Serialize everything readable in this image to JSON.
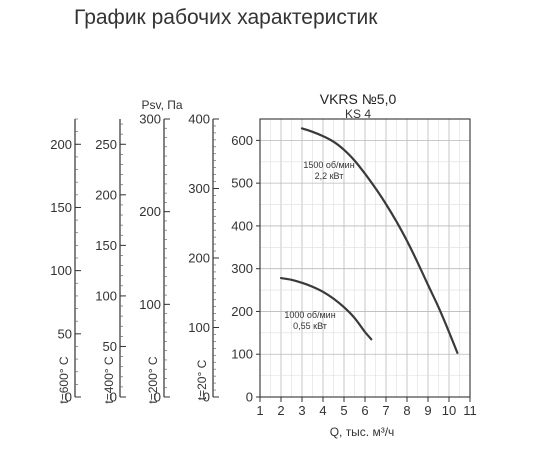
{
  "page_title": "График рабочих характеристик",
  "chart_data": {
    "type": "line",
    "title": "VKRS №5,0",
    "subtitle": "KS 4",
    "xlabel": "Q, тыс. м³/ч",
    "ylabel": "Psv, Па",
    "xlim": [
      1,
      11
    ],
    "ylim": [
      0,
      650
    ],
    "x_ticks": [
      "1",
      "2",
      "3",
      "4",
      "5",
      "6",
      "7",
      "8",
      "9",
      "10",
      "11"
    ],
    "y_ticks": [
      0,
      100,
      200,
      300,
      400,
      500,
      600
    ],
    "grid": true,
    "series": [
      {
        "name": "1500 об/мин",
        "label_line1": "1500 об/мин",
        "label_line2": "2,2 кВт",
        "x": [
          3.0,
          3.5,
          4.0,
          4.5,
          5.0,
          5.5,
          6.0,
          6.5,
          7.0,
          7.5,
          8.0,
          8.5,
          9.0,
          9.5,
          10.0,
          10.4
        ],
        "y": [
          628,
          620,
          610,
          597,
          578,
          553,
          522,
          488,
          451,
          410,
          365,
          315,
          262,
          210,
          152,
          103
        ]
      },
      {
        "name": "1000 об/мин",
        "label_line1": "1000 об/мин",
        "label_line2": "0,55 кВт",
        "x": [
          2.0,
          2.5,
          3.0,
          3.5,
          4.0,
          4.5,
          5.0,
          5.5,
          6.0,
          6.3
        ],
        "y": [
          278,
          274,
          267,
          258,
          246,
          230,
          210,
          185,
          152,
          135
        ]
      }
    ],
    "temperature_axes": [
      {
        "label": "t=20° C",
        "ticks": [
          "0",
          "100",
          "200",
          "300",
          "400"
        ]
      },
      {
        "label": "t=200° C",
        "ticks": [
          "0",
          "100",
          "200",
          "300"
        ]
      },
      {
        "label": "t=400° C",
        "ticks": [
          "0",
          "50",
          "100",
          "150",
          "200",
          "250"
        ]
      },
      {
        "label": "t=600° C",
        "ticks": [
          "0",
          "50",
          "100",
          "150",
          "200"
        ]
      }
    ]
  }
}
